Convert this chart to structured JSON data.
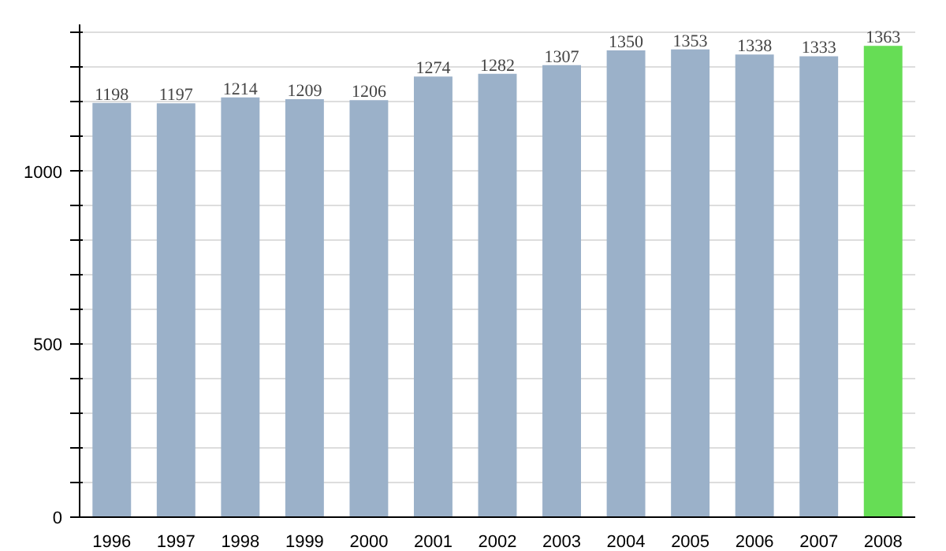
{
  "chart_data": {
    "type": "bar",
    "categories": [
      "1996",
      "1997",
      "1998",
      "1999",
      "2000",
      "2001",
      "2002",
      "2003",
      "2004",
      "2005",
      "2006",
      "2007",
      "2008"
    ],
    "values": [
      1198,
      1197,
      1214,
      1209,
      1206,
      1274,
      1282,
      1307,
      1350,
      1353,
      1338,
      1333,
      1363
    ],
    "colors": [
      "#9bb1c9",
      "#9bb1c9",
      "#9bb1c9",
      "#9bb1c9",
      "#9bb1c9",
      "#9bb1c9",
      "#9bb1c9",
      "#9bb1c9",
      "#9bb1c9",
      "#9bb1c9",
      "#9bb1c9",
      "#9bb1c9",
      "#66dd55"
    ],
    "data_labels": true,
    "ylim": [
      0,
      1425
    ],
    "yticks": [
      0,
      {
        "value": 100,
        "label": null
      },
      {
        "value": 200,
        "label": null
      },
      {
        "value": 300,
        "label": null
      },
      {
        "value": 400,
        "label": null
      },
      500,
      {
        "value": 600,
        "label": null
      },
      {
        "value": 700,
        "label": null
      },
      {
        "value": 800,
        "label": null
      },
      {
        "value": 900,
        "label": null
      },
      1000,
      {
        "value": 1100,
        "label": null
      },
      {
        "value": 1200,
        "label": null
      },
      {
        "value": 1300,
        "label": null
      },
      {
        "value": 1400,
        "label": null
      }
    ],
    "grid": "y"
  }
}
